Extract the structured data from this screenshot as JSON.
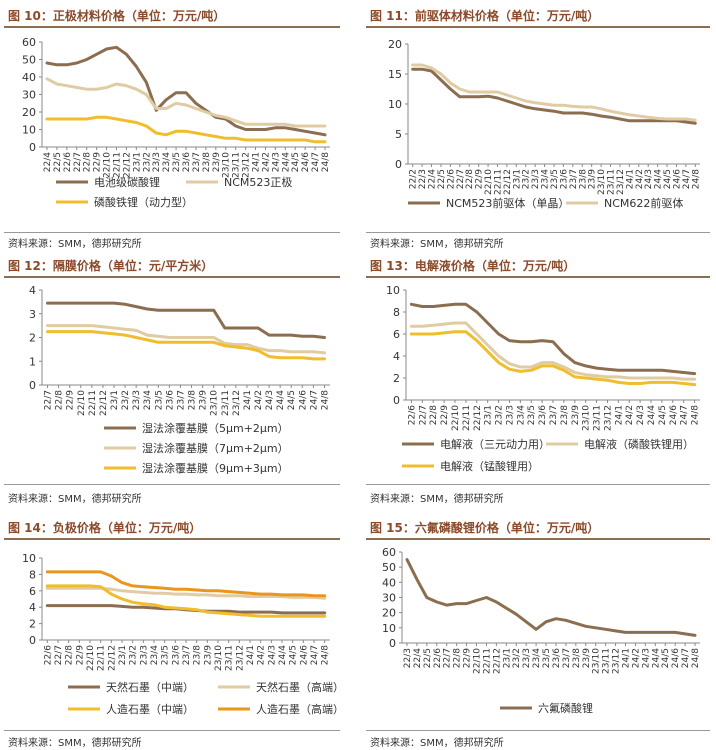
{
  "charts": [
    {
      "title": "图 10：正极材料价格（单位：万元/吨）",
      "source": "资料来源：SMM，德邦研究所",
      "chart_data": {
        "type": "line",
        "ylim": [
          0,
          60
        ],
        "yticks": [
          0,
          10,
          20,
          30,
          40,
          50,
          60
        ],
        "x": [
          "22/4",
          "22/5",
          "22/6",
          "22/7",
          "22/8",
          "22/9",
          "22/10",
          "22/11",
          "22/12",
          "23/1",
          "23/2",
          "23/3",
          "23/4",
          "23/5",
          "23/6",
          "23/7",
          "23/8",
          "23/9",
          "23/10",
          "23/11",
          "23/12",
          "24/1",
          "24/2",
          "24/3",
          "24/4",
          "24/5",
          "24/6",
          "24/7",
          "24/8"
        ],
        "series": [
          {
            "name": "电池级碳酸锂",
            "color": "#8B6D50",
            "values": [
              48,
              47,
              47,
              48,
              50,
              53,
              56,
              57,
              53,
              46,
              37,
              21,
              27,
              31,
              31,
              25,
              21,
              17,
              16,
              12,
              10,
              10,
              10,
              11,
              11,
              10,
              9,
              8,
              7
            ]
          },
          {
            "name": "NCM523正极",
            "color": "#E0CBA3",
            "values": [
              39,
              36,
              35,
              34,
              33,
              33,
              34,
              36,
              35,
              33,
              30,
              22,
              22,
              25,
              24,
              22,
              20,
              18,
              17,
              15,
              13,
              13,
              13,
              13,
              13,
              12,
              12,
              12,
              12
            ]
          },
          {
            "name": "磷酸铁锂（动力型）",
            "color": "#F0BE2D",
            "values": [
              16,
              16,
              16,
              16,
              16,
              17,
              17,
              16,
              15,
              14,
              12,
              8,
              7,
              9,
              9,
              8,
              7,
              6,
              5,
              5,
              4,
              4,
              4,
              4,
              4,
              4,
              4,
              3,
              3
            ]
          }
        ]
      }
    },
    {
      "title": "图 11：前驱体材料价格（单位：万元/吨）",
      "source": "资料来源：SMM，德邦研究所",
      "chart_data": {
        "type": "line",
        "ylim": [
          0,
          20
        ],
        "yticks": [
          0,
          5,
          10,
          15,
          20
        ],
        "x": [
          "22/2",
          "22/3",
          "22/4",
          "22/5",
          "22/6",
          "22/7",
          "22/8",
          "22/9",
          "22/10",
          "22/11",
          "22/12",
          "23/1",
          "23/2",
          "23/3",
          "23/4",
          "23/5",
          "23/6",
          "23/7",
          "23/8",
          "23/9",
          "23/10",
          "23/11",
          "23/12",
          "24/1",
          "24/2",
          "24/3",
          "24/4",
          "24/5",
          "24/6",
          "24/7",
          "24/8"
        ],
        "series": [
          {
            "name": "NCM523前驱体（单晶）",
            "color": "#8B6D50",
            "values": [
              15.8,
              15.8,
              15.5,
              14.0,
              12.5,
              11.2,
              11.2,
              11.2,
              11.3,
              11.0,
              10.5,
              10.0,
              9.5,
              9.2,
              9.0,
              8.8,
              8.5,
              8.5,
              8.5,
              8.3,
              8.0,
              7.8,
              7.5,
              7.2,
              7.2,
              7.2,
              7.2,
              7.2,
              7.2,
              7.0,
              6.8
            ]
          },
          {
            "name": "NCM622前驱体",
            "color": "#E0CBA3",
            "values": [
              16.5,
              16.5,
              16.0,
              15.0,
              13.5,
              12.5,
              12.0,
              12.0,
              12.0,
              12.0,
              11.5,
              11.0,
              10.5,
              10.2,
              10.0,
              9.8,
              9.8,
              9.6,
              9.5,
              9.5,
              9.2,
              8.8,
              8.5,
              8.2,
              8.0,
              7.8,
              7.6,
              7.5,
              7.5,
              7.5,
              7.3
            ]
          }
        ]
      }
    },
    {
      "title": "图 12：隔膜价格（单位：元/平方米）",
      "source": "资料来源：SMM，德邦研究所",
      "chart_data": {
        "type": "line",
        "ylim": [
          0,
          4
        ],
        "yticks": [
          0,
          1,
          2,
          3,
          4
        ],
        "x": [
          "22/7",
          "22/8",
          "22/9",
          "22/10",
          "22/11",
          "22/12",
          "23/1",
          "23/2",
          "23/3",
          "23/4",
          "23/5",
          "23/6",
          "23/7",
          "23/8",
          "23/9",
          "23/10",
          "23/11",
          "23/12",
          "24/1",
          "24/2",
          "24/3",
          "24/4",
          "24/5",
          "24/6",
          "24/7",
          "24/8"
        ],
        "series": [
          {
            "name": "湿法涂覆基膜（5μm+2μm）",
            "color": "#8B6D50",
            "values": [
              3.45,
              3.45,
              3.45,
              3.45,
              3.45,
              3.45,
              3.45,
              3.4,
              3.3,
              3.2,
              3.15,
              3.15,
              3.15,
              3.15,
              3.15,
              3.15,
              2.4,
              2.4,
              2.4,
              2.4,
              2.1,
              2.1,
              2.1,
              2.05,
              2.05,
              2.0
            ]
          },
          {
            "name": "湿法涂覆基膜（7μm+2μm）",
            "color": "#E0CBA3",
            "values": [
              2.5,
              2.5,
              2.5,
              2.5,
              2.5,
              2.45,
              2.4,
              2.35,
              2.3,
              2.1,
              2.05,
              2.0,
              2.0,
              2.0,
              2.0,
              2.0,
              1.75,
              1.7,
              1.7,
              1.55,
              1.45,
              1.45,
              1.4,
              1.4,
              1.4,
              1.35
            ]
          },
          {
            "name": "湿法涂覆基膜（9μm+3μm）",
            "color": "#F0BE2D",
            "values": [
              2.25,
              2.25,
              2.25,
              2.25,
              2.25,
              2.2,
              2.15,
              2.1,
              2.0,
              1.9,
              1.8,
              1.8,
              1.8,
              1.8,
              1.8,
              1.8,
              1.65,
              1.6,
              1.55,
              1.45,
              1.2,
              1.15,
              1.15,
              1.15,
              1.1,
              1.1
            ]
          }
        ]
      }
    },
    {
      "title": "图 13：电解液价格（单位：万元/吨）",
      "source": "资料来源：SMM，德邦研究所",
      "chart_data": {
        "type": "line",
        "ylim": [
          0,
          10
        ],
        "yticks": [
          0,
          2,
          4,
          6,
          8,
          10
        ],
        "x": [
          "22/6",
          "22/7",
          "22/8",
          "22/9",
          "22/10",
          "22/11",
          "22/12",
          "23/1",
          "23/2",
          "23/3",
          "23/4",
          "23/5",
          "23/6",
          "23/7",
          "23/8",
          "23/9",
          "23/10",
          "23/11",
          "23/12",
          "24/1",
          "24/2",
          "24/3",
          "24/4",
          "24/5",
          "24/6",
          "24/7",
          "24/8"
        ],
        "series": [
          {
            "name": "电解液（三元动力用）",
            "color": "#8B6D50",
            "values": [
              8.7,
              8.5,
              8.5,
              8.6,
              8.7,
              8.7,
              8.0,
              7.0,
              6.0,
              5.4,
              5.3,
              5.3,
              5.4,
              5.3,
              4.2,
              3.4,
              3.1,
              2.9,
              2.8,
              2.7,
              2.7,
              2.7,
              2.7,
              2.7,
              2.6,
              2.5,
              2.4
            ]
          },
          {
            "name": "电解液（磷酸铁锂用）",
            "color": "#E0CBA3",
            "values": [
              6.7,
              6.7,
              6.8,
              6.9,
              7.0,
              7.0,
              6.0,
              5.0,
              4.0,
              3.3,
              3.0,
              3.0,
              3.4,
              3.4,
              3.0,
              2.5,
              2.3,
              2.2,
              2.1,
              2.1,
              2.0,
              2.0,
              2.0,
              2.0,
              2.0,
              1.9,
              1.9
            ]
          },
          {
            "name": "电解液（锰酸锂用）",
            "color": "#F0BE2D",
            "values": [
              6.0,
              6.0,
              6.0,
              6.1,
              6.2,
              6.2,
              5.4,
              4.4,
              3.4,
              2.8,
              2.6,
              2.7,
              3.1,
              3.1,
              2.7,
              2.1,
              2.0,
              1.9,
              1.8,
              1.6,
              1.5,
              1.5,
              1.6,
              1.6,
              1.6,
              1.5,
              1.4
            ]
          }
        ]
      }
    },
    {
      "title": "图 14：负极价格（单位：万元/吨）",
      "source": "资料来源：SMM，德邦研究所",
      "chart_data": {
        "type": "line",
        "ylim": [
          0,
          10
        ],
        "yticks": [
          0,
          2,
          4,
          6,
          8,
          10
        ],
        "x": [
          "22/6",
          "22/7",
          "22/8",
          "22/9",
          "22/10",
          "22/11",
          "22/12",
          "23/1",
          "23/2",
          "23/3",
          "23/4",
          "23/5",
          "23/6",
          "23/7",
          "23/8",
          "23/9",
          "23/10",
          "23/11",
          "23/12",
          "24/1",
          "24/2",
          "24/3",
          "24/4",
          "24/5",
          "24/6",
          "24/7",
          "24/8"
        ],
        "series": [
          {
            "name": "天然石墨（中端）",
            "color": "#8B6D50",
            "values": [
              4.2,
              4.2,
              4.2,
              4.2,
              4.2,
              4.2,
              4.2,
              4.1,
              4.0,
              4.0,
              3.9,
              3.8,
              3.8,
              3.7,
              3.6,
              3.5,
              3.5,
              3.5,
              3.4,
              3.4,
              3.4,
              3.4,
              3.3,
              3.3,
              3.3,
              3.3,
              3.3
            ]
          },
          {
            "name": "天然石墨（高端）",
            "color": "#E0CBA3",
            "values": [
              6.3,
              6.3,
              6.3,
              6.3,
              6.3,
              6.3,
              6.2,
              6.0,
              5.9,
              5.8,
              5.7,
              5.7,
              5.6,
              5.6,
              5.5,
              5.5,
              5.4,
              5.4,
              5.4,
              5.3,
              5.3,
              5.3,
              5.3,
              5.2,
              5.2,
              5.2,
              5.1
            ]
          },
          {
            "name": "人造石墨（中端）",
            "color": "#F0BE2D",
            "values": [
              6.6,
              6.6,
              6.6,
              6.6,
              6.6,
              6.5,
              5.6,
              5.0,
              4.6,
              4.4,
              4.3,
              4.0,
              3.9,
              3.8,
              3.7,
              3.4,
              3.3,
              3.2,
              3.1,
              3.0,
              2.9,
              2.9,
              2.9,
              2.9,
              2.9,
              2.9,
              2.9
            ]
          },
          {
            "name": "人造石墨（高端）",
            "color": "#E8961E",
            "values": [
              8.3,
              8.3,
              8.3,
              8.3,
              8.3,
              8.3,
              7.8,
              7.0,
              6.6,
              6.5,
              6.4,
              6.3,
              6.2,
              6.2,
              6.1,
              6.0,
              6.0,
              5.9,
              5.8,
              5.7,
              5.6,
              5.6,
              5.5,
              5.5,
              5.5,
              5.4,
              5.4
            ]
          }
        ]
      }
    },
    {
      "title": "图 15：六氟磷酸锂价格（单位：万元/吨）",
      "source": "资料来源：SMM，德邦研究所",
      "chart_data": {
        "type": "line",
        "ylim": [
          0,
          60
        ],
        "yticks": [
          0,
          10,
          20,
          30,
          40,
          50,
          60
        ],
        "x": [
          "22/3",
          "22/4",
          "22/5",
          "22/6",
          "22/7",
          "22/8",
          "22/9",
          "22/10",
          "22/11",
          "22/12",
          "23/1",
          "23/2",
          "23/3",
          "23/4",
          "23/5",
          "23/6",
          "23/7",
          "23/8",
          "23/9",
          "23/10",
          "23/11",
          "23/12",
          "24/1",
          "24/2",
          "24/3",
          "24/4",
          "24/5",
          "24/6",
          "24/7",
          "24/8"
        ],
        "series": [
          {
            "name": "六氟磷酸锂",
            "color": "#8B6D50",
            "values": [
              55,
              42,
              30,
              27,
              25,
              26,
              26,
              28,
              30,
              27,
              23,
              19,
              14,
              9,
              14,
              16,
              15,
              13,
              11,
              10,
              9,
              8,
              7,
              7,
              7,
              7,
              7,
              7,
              6,
              5
            ]
          }
        ]
      }
    }
  ]
}
